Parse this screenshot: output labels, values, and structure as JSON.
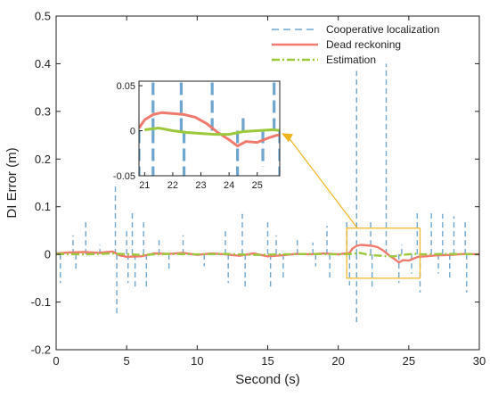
{
  "colors": {
    "cooperative": "#6fa6cf",
    "dead_reckoning": "#f07a6e",
    "estimation": "#9bc83c",
    "zoom_box": "#f0b41e",
    "axis": "#222222"
  },
  "chart_data": {
    "type": "line",
    "title": "",
    "xlabel": "Second (s)",
    "ylabel": "DI Error (m)",
    "xlim": [
      0,
      30
    ],
    "ylim": [
      -0.2,
      0.5
    ],
    "x_ticks": [
      0,
      5,
      10,
      15,
      20,
      25,
      30
    ],
    "y_ticks": [
      -0.2,
      -0.1,
      0,
      0.1,
      0.2,
      0.3,
      0.4,
      0.5
    ],
    "y_tick_labels": [
      "-0.2",
      "-0.1",
      "0",
      "0.1",
      "0.2",
      "0.3",
      "0.4",
      "0.5"
    ],
    "legend": {
      "placement": "top-right",
      "entries": [
        "Cooperative localization",
        "Dead reckoning",
        "Estimation"
      ]
    },
    "series": [
      {
        "name": "Cooperative localization",
        "style": "dashed",
        "spikes": [
          {
            "x": 0.3,
            "y": -0.06
          },
          {
            "x": 1.2,
            "y": 0.04
          },
          {
            "x": 1.4,
            "y": -0.03
          },
          {
            "x": 2.1,
            "y": 0.075
          },
          {
            "x": 3.1,
            "y": 0.02
          },
          {
            "x": 4.2,
            "y": 0.145
          },
          {
            "x": 4.3,
            "y": -0.125
          },
          {
            "x": 5.0,
            "y": 0.05
          },
          {
            "x": 5.1,
            "y": -0.06
          },
          {
            "x": 5.4,
            "y": 0.09
          },
          {
            "x": 5.6,
            "y": -0.07
          },
          {
            "x": 6.2,
            "y": 0.075
          },
          {
            "x": 6.4,
            "y": -0.075
          },
          {
            "x": 7.3,
            "y": 0.03
          },
          {
            "x": 8.0,
            "y": -0.03
          },
          {
            "x": 9.0,
            "y": 0.04
          },
          {
            "x": 10.5,
            "y": -0.025
          },
          {
            "x": 12.0,
            "y": 0.05
          },
          {
            "x": 12.2,
            "y": -0.06
          },
          {
            "x": 13.2,
            "y": 0.085
          },
          {
            "x": 13.4,
            "y": -0.07
          },
          {
            "x": 15.0,
            "y": 0.07
          },
          {
            "x": 15.2,
            "y": -0.075
          },
          {
            "x": 15.6,
            "y": 0.04
          },
          {
            "x": 16.1,
            "y": -0.05
          },
          {
            "x": 17.1,
            "y": 0.03
          },
          {
            "x": 18.2,
            "y": 0.025
          },
          {
            "x": 18.4,
            "y": -0.025
          },
          {
            "x": 19.2,
            "y": 0.06
          },
          {
            "x": 19.4,
            "y": -0.05
          },
          {
            "x": 20.6,
            "y": 0.07
          },
          {
            "x": 20.8,
            "y": -0.065
          },
          {
            "x": 21.3,
            "y": 0.385
          },
          {
            "x": 21.3,
            "y": -0.15
          },
          {
            "x": 22.3,
            "y": 0.07
          },
          {
            "x": 22.4,
            "y": -0.07
          },
          {
            "x": 23.4,
            "y": 0.4
          },
          {
            "x": 24.3,
            "y": -0.06
          },
          {
            "x": 24.5,
            "y": 0.02
          },
          {
            "x": 25.2,
            "y": -0.04
          },
          {
            "x": 25.6,
            "y": 0.09
          },
          {
            "x": 25.8,
            "y": -0.08
          },
          {
            "x": 26.6,
            "y": 0.09
          },
          {
            "x": 27.1,
            "y": -0.04
          },
          {
            "x": 27.4,
            "y": 0.085
          },
          {
            "x": 27.9,
            "y": -0.05
          },
          {
            "x": 28.2,
            "y": 0.08
          },
          {
            "x": 29.0,
            "y": 0.07
          },
          {
            "x": 29.1,
            "y": -0.08
          }
        ]
      },
      {
        "name": "Dead reckoning",
        "style": "solid",
        "points": [
          {
            "x": 0,
            "y": 0.002
          },
          {
            "x": 1,
            "y": 0.004
          },
          {
            "x": 2,
            "y": 0.005
          },
          {
            "x": 3,
            "y": 0.003
          },
          {
            "x": 4,
            "y": 0.006
          },
          {
            "x": 4.5,
            "y": -0.002
          },
          {
            "x": 5,
            "y": -0.005
          },
          {
            "x": 6,
            "y": -0.004
          },
          {
            "x": 7,
            "y": 0.002
          },
          {
            "x": 8,
            "y": 0.001
          },
          {
            "x": 9,
            "y": 0.003
          },
          {
            "x": 10,
            "y": -0.001
          },
          {
            "x": 11,
            "y": 0.002
          },
          {
            "x": 12,
            "y": 0.0
          },
          {
            "x": 13,
            "y": -0.003
          },
          {
            "x": 14,
            "y": 0.002
          },
          {
            "x": 15,
            "y": -0.004
          },
          {
            "x": 16,
            "y": -0.002
          },
          {
            "x": 17,
            "y": 0.001
          },
          {
            "x": 18,
            "y": 0.0
          },
          {
            "x": 19,
            "y": 0.002
          },
          {
            "x": 20,
            "y": 0.0
          },
          {
            "x": 20.8,
            "y": 0.003
          },
          {
            "x": 21.0,
            "y": 0.012
          },
          {
            "x": 21.3,
            "y": 0.018
          },
          {
            "x": 21.6,
            "y": 0.02
          },
          {
            "x": 22.0,
            "y": 0.019
          },
          {
            "x": 22.4,
            "y": 0.018
          },
          {
            "x": 22.8,
            "y": 0.015
          },
          {
            "x": 23.2,
            "y": 0.008
          },
          {
            "x": 23.6,
            "y": -0.002
          },
          {
            "x": 24.0,
            "y": -0.01
          },
          {
            "x": 24.3,
            "y": -0.017
          },
          {
            "x": 24.6,
            "y": -0.012
          },
          {
            "x": 25.0,
            "y": -0.013
          },
          {
            "x": 25.4,
            "y": -0.008
          },
          {
            "x": 25.7,
            "y": -0.005
          },
          {
            "x": 26.2,
            "y": -0.004
          },
          {
            "x": 27,
            "y": -0.002
          },
          {
            "x": 28,
            "y": -0.001
          },
          {
            "x": 29,
            "y": 0.001
          },
          {
            "x": 30,
            "y": 0.0
          }
        ]
      },
      {
        "name": "Estimation",
        "style": "dash-dot",
        "points": [
          {
            "x": 0,
            "y": 0.001
          },
          {
            "x": 2,
            "y": 0.0
          },
          {
            "x": 4,
            "y": 0.002
          },
          {
            "x": 6,
            "y": -0.001
          },
          {
            "x": 8,
            "y": 0.001
          },
          {
            "x": 10,
            "y": 0.0
          },
          {
            "x": 12,
            "y": 0.001
          },
          {
            "x": 14,
            "y": -0.001
          },
          {
            "x": 16,
            "y": 0.0
          },
          {
            "x": 18,
            "y": 0.001
          },
          {
            "x": 20,
            "y": 0.0
          },
          {
            "x": 21.0,
            "y": 0.001
          },
          {
            "x": 21.5,
            "y": 0.003
          },
          {
            "x": 22.0,
            "y": 0.0
          },
          {
            "x": 22.5,
            "y": -0.002
          },
          {
            "x": 23.0,
            "y": -0.003
          },
          {
            "x": 23.5,
            "y": -0.004
          },
          {
            "x": 24.0,
            "y": -0.004
          },
          {
            "x": 24.5,
            "y": -0.001
          },
          {
            "x": 25.0,
            "y": 0.0
          },
          {
            "x": 25.5,
            "y": 0.001
          },
          {
            "x": 26,
            "y": 0.0
          },
          {
            "x": 28,
            "y": 0.001
          },
          {
            "x": 30,
            "y": 0.0
          }
        ]
      }
    ],
    "inset": {
      "xlim": [
        20.8,
        25.8
      ],
      "ylim": [
        -0.05,
        0.055
      ],
      "x_ticks": [
        21,
        22,
        23,
        24,
        25
      ],
      "y_ticks": [
        -0.05,
        0,
        0.05
      ],
      "y_tick_labels": [
        "-0.05",
        "0",
        "0.05"
      ],
      "zoom_region": {
        "x": [
          20.6,
          25.8
        ],
        "y": [
          -0.05,
          0.055
        ]
      }
    }
  }
}
